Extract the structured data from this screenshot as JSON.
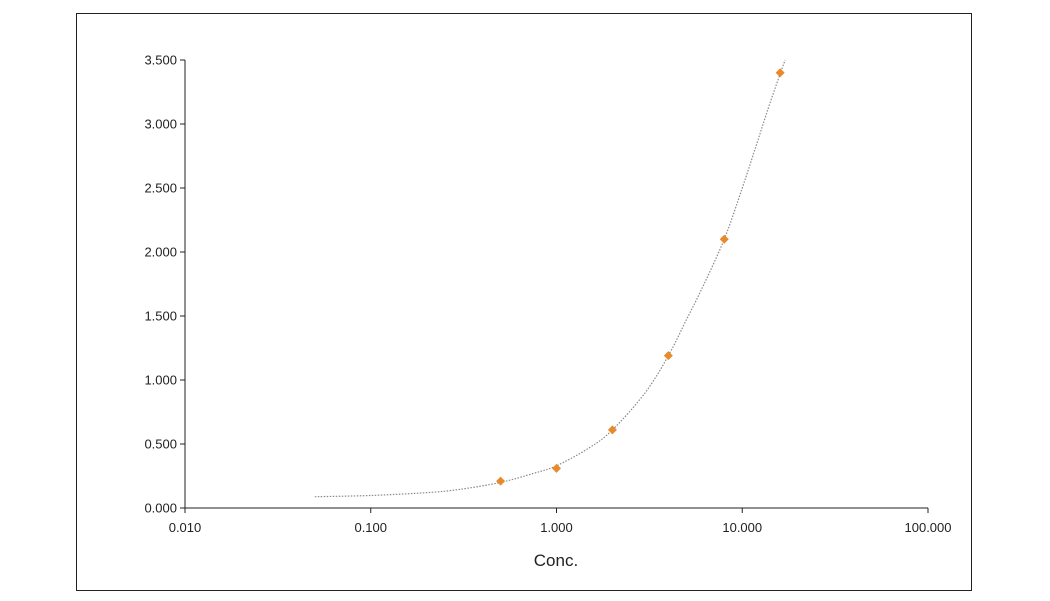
{
  "chart_data": {
    "type": "scatter",
    "title": "",
    "xlabel": "Conc.",
    "ylabel": "",
    "x_scale": "log",
    "xlim": [
      0.01,
      100
    ],
    "ylim": [
      0,
      3.5
    ],
    "x_ticks": [
      "0.010",
      "0.100",
      "1.000",
      "10.000",
      "100.000"
    ],
    "y_ticks": [
      "0.000",
      "0.500",
      "1.000",
      "1.500",
      "2.000",
      "2.500",
      "3.000",
      "3.500"
    ],
    "grid": false,
    "legend": "none",
    "series": [
      {
        "x": [
          0.5,
          1,
          2,
          4,
          8,
          16
        ],
        "y": [
          0.21,
          0.31,
          0.61,
          1.19,
          2.1,
          3.4
        ],
        "marker": "diamond",
        "color": "#e8892b"
      }
    ],
    "fit_curve": {
      "x": [
        0.05,
        0.1,
        0.2,
        0.3,
        0.5,
        0.75,
        1,
        1.5,
        2,
        3,
        4,
        5,
        6,
        8,
        10,
        12,
        14,
        17
      ],
      "y": [
        0.088,
        0.098,
        0.12,
        0.145,
        0.2,
        0.27,
        0.33,
        0.47,
        0.61,
        0.9,
        1.19,
        1.47,
        1.7,
        2.1,
        2.5,
        2.85,
        3.15,
        3.5
      ],
      "style": "dotted",
      "color": "#8a8a8a"
    }
  }
}
